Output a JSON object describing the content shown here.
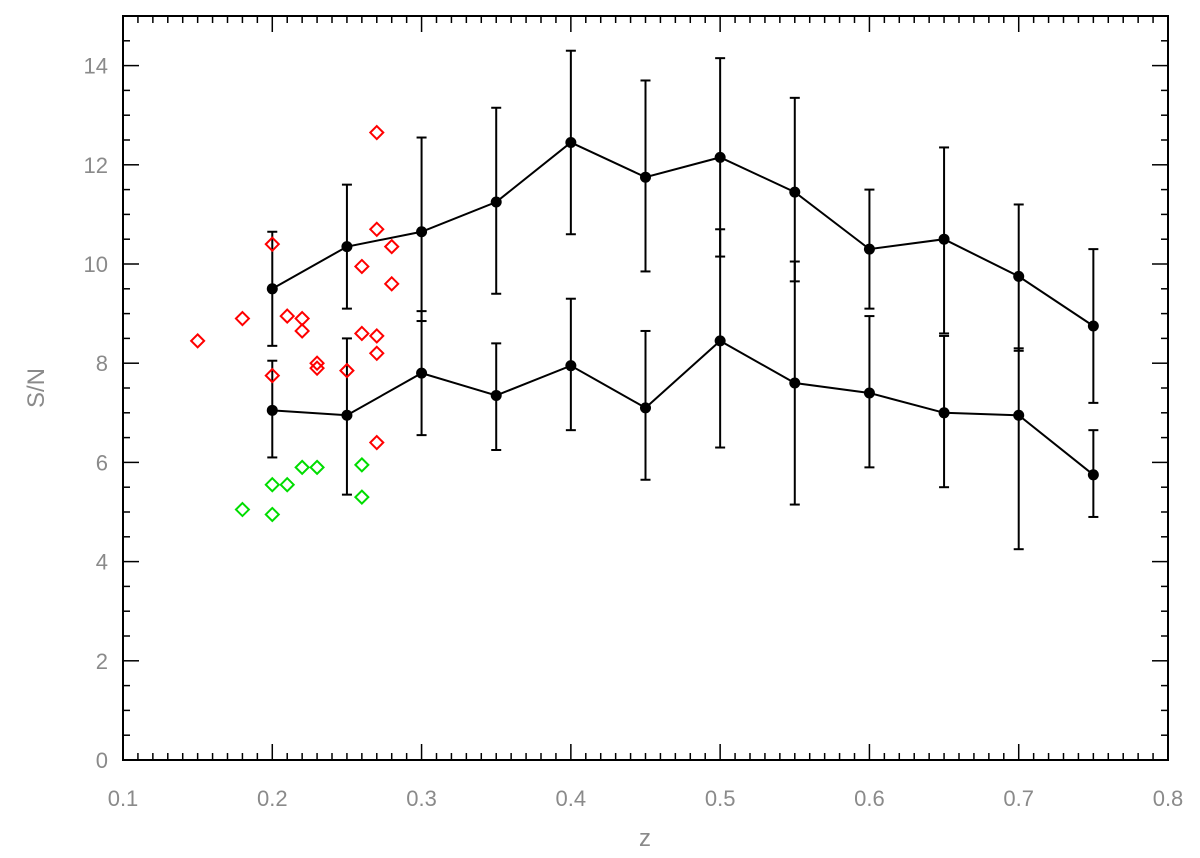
{
  "chart_data": {
    "type": "scatter",
    "xlabel": "z",
    "ylabel": "S/N",
    "xlim": [
      0.1,
      0.8
    ],
    "ylim": [
      0,
      15
    ],
    "xticks": [
      "0.1",
      "0.2",
      "0.3",
      "0.4",
      "0.5",
      "0.6",
      "0.7",
      "0.8"
    ],
    "yticks": [
      "0",
      "2",
      "4",
      "6",
      "8",
      "10",
      "12",
      "14"
    ],
    "grid": false,
    "series": [
      {
        "kind": "line-errorbar",
        "color": "#000000",
        "x": [
          0.2,
          0.25,
          0.3,
          0.35,
          0.4,
          0.45,
          0.5,
          0.55,
          0.6,
          0.65,
          0.7,
          0.75
        ],
        "y": [
          9.5,
          10.35,
          10.65,
          11.25,
          12.45,
          11.75,
          12.15,
          11.45,
          10.3,
          10.5,
          9.75,
          8.75
        ],
        "err_low": [
          8.35,
          9.1,
          8.85,
          9.4,
          10.6,
          9.85,
          10.15,
          9.65,
          9.1,
          8.6,
          8.25,
          7.2
        ],
        "err_high": [
          10.65,
          11.6,
          12.55,
          13.15,
          14.3,
          13.7,
          14.15,
          13.35,
          11.5,
          12.35,
          11.2,
          10.3
        ]
      },
      {
        "kind": "line-errorbar",
        "color": "#000000",
        "x": [
          0.2,
          0.25,
          0.3,
          0.35,
          0.4,
          0.45,
          0.5,
          0.55,
          0.6,
          0.65,
          0.7,
          0.75
        ],
        "y": [
          7.05,
          6.95,
          7.8,
          7.35,
          7.95,
          7.1,
          8.45,
          7.6,
          7.4,
          7.0,
          6.95,
          5.75
        ],
        "err_low": [
          6.1,
          5.35,
          6.55,
          6.25,
          6.65,
          5.65,
          6.3,
          5.15,
          5.9,
          5.5,
          4.25,
          4.9
        ],
        "err_high": [
          8.05,
          8.5,
          9.05,
          8.4,
          9.3,
          8.65,
          10.7,
          10.05,
          8.95,
          8.55,
          8.3,
          6.65
        ]
      },
      {
        "kind": "markers",
        "color": "#ff0000",
        "x": [
          0.15,
          0.18,
          0.2,
          0.2,
          0.21,
          0.22,
          0.22,
          0.23,
          0.23,
          0.25,
          0.26,
          0.26,
          0.27,
          0.27,
          0.27,
          0.27,
          0.27,
          0.28,
          0.28
        ],
        "y": [
          8.45,
          8.9,
          10.4,
          7.75,
          8.95,
          8.9,
          8.65,
          8.0,
          7.9,
          7.85,
          9.95,
          8.6,
          12.65,
          10.7,
          8.55,
          8.2,
          6.4,
          10.35,
          9.6
        ]
      },
      {
        "kind": "markers",
        "color": "#00dd00",
        "x": [
          0.18,
          0.2,
          0.2,
          0.21,
          0.22,
          0.23,
          0.26,
          0.26
        ],
        "y": [
          5.05,
          4.95,
          5.55,
          5.55,
          5.9,
          5.9,
          5.95,
          5.3
        ]
      }
    ]
  }
}
